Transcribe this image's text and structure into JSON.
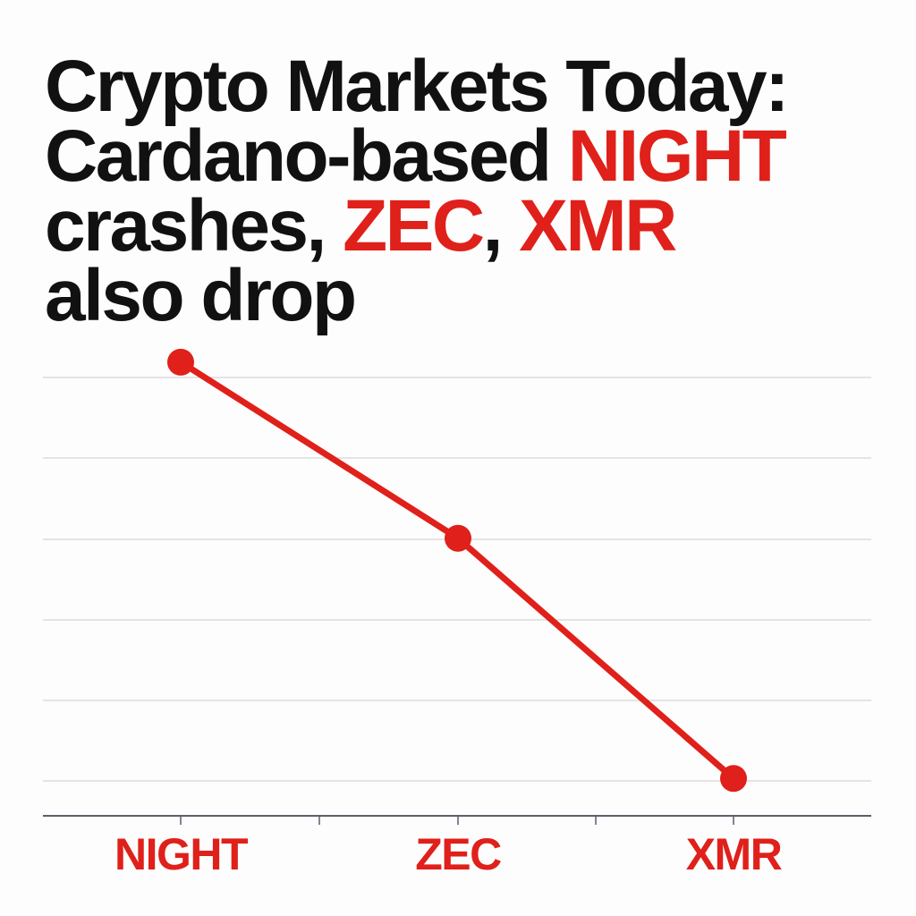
{
  "headline": {
    "line1": "Crypto Markets Today:",
    "line2_prefix": "Cardano-based ",
    "line2_highlight": "NIGHT",
    "line3_prefix": "crashes, ",
    "line3_highlight_1": "ZEC",
    "line3_separator": ", ",
    "line3_highlight_2": "XMR",
    "line4": "also drop"
  },
  "colors": {
    "accent": "#e0201a",
    "text": "#111111",
    "grid": "#dcdcdc",
    "axis": "#5a5f6a"
  },
  "chart_data": {
    "type": "line",
    "categories": [
      "NIGHT",
      "ZEC",
      "XMR"
    ],
    "series": [
      {
        "values": [
          95,
          62,
          17
        ]
      }
    ],
    "title": "",
    "xlabel": "",
    "ylabel": "",
    "ylim": [
      10,
      100
    ],
    "grid": true,
    "legend": "none"
  }
}
